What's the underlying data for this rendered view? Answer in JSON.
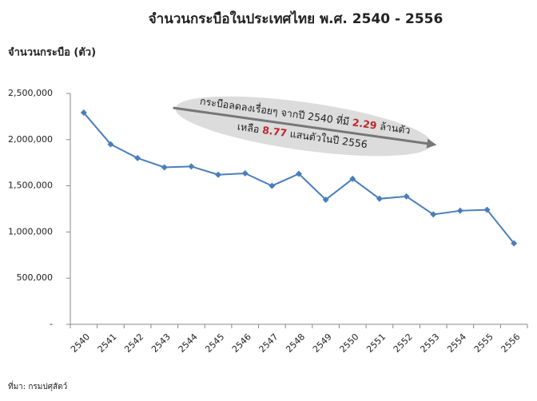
{
  "chart_data": {
    "type": "line",
    "title": "จำนวนกระบือในประเทศไทย พ.ศ. 2540 - 2556",
    "y_label": "จำนวนกระบือ (ตัว)",
    "source": "ที่มา: กรมปศุสัตว์",
    "annotation": {
      "line1": [
        "กระบือลดลงเรื่อยๆ จากปี 2540 ที่มี",
        "2.29",
        "ล้านตัว"
      ],
      "line2": [
        "เหลือ",
        "8.77",
        "แสนตัวในปี 2556"
      ]
    },
    "categories": [
      "2540",
      "2541",
      "2542",
      "2543",
      "2544",
      "2545",
      "2546",
      "2547",
      "2548",
      "2549",
      "2550",
      "2551",
      "2552",
      "2553",
      "2554",
      "2555",
      "2556"
    ],
    "series": [
      {
        "name": "จำนวนกระบือ",
        "color": "#4a7ebb",
        "values": [
          2292000,
          1950000,
          1800000,
          1700000,
          1710000,
          1620000,
          1635000,
          1500000,
          1630000,
          1350000,
          1575000,
          1360000,
          1385000,
          1190000,
          1230000,
          1240000,
          877000
        ]
      }
    ],
    "ylim": [
      0,
      2500000
    ],
    "yticks": [
      {
        "value": 0,
        "label": "-"
      },
      {
        "value": 500000,
        "label": "500,000"
      },
      {
        "value": 1000000,
        "label": "1,000,000"
      },
      {
        "value": 1500000,
        "label": "1,500,000"
      },
      {
        "value": 2000000,
        "label": "2,000,000"
      },
      {
        "value": 2500000,
        "label": "2,500,000"
      }
    ],
    "grid": false
  }
}
